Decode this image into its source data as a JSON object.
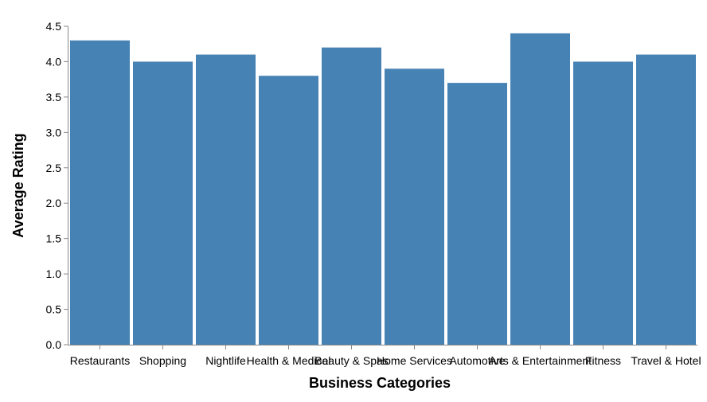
{
  "chart_data": {
    "type": "bar",
    "categories": [
      "Restaurants",
      "Shopping",
      "Nightlife",
      "Health & Medical",
      "Beauty & Spas",
      "Home Services",
      "Automotive",
      "Arts & Entertainment",
      "Fitness",
      "Travel & Hotel"
    ],
    "values": [
      4.3,
      4.0,
      4.1,
      3.8,
      4.2,
      3.9,
      3.7,
      4.4,
      4.0,
      4.1
    ],
    "title": "",
    "xlabel": "Business Categories",
    "ylabel": "Average Rating",
    "ylim": [
      0,
      4.5
    ],
    "yticks": [
      "0.0",
      "0.5",
      "1.0",
      "1.5",
      "2.0",
      "2.5",
      "3.0",
      "3.5",
      "4.0",
      "4.5"
    ],
    "grid": false,
    "bar_color": "#4682b4",
    "axis_color": "#888888"
  }
}
